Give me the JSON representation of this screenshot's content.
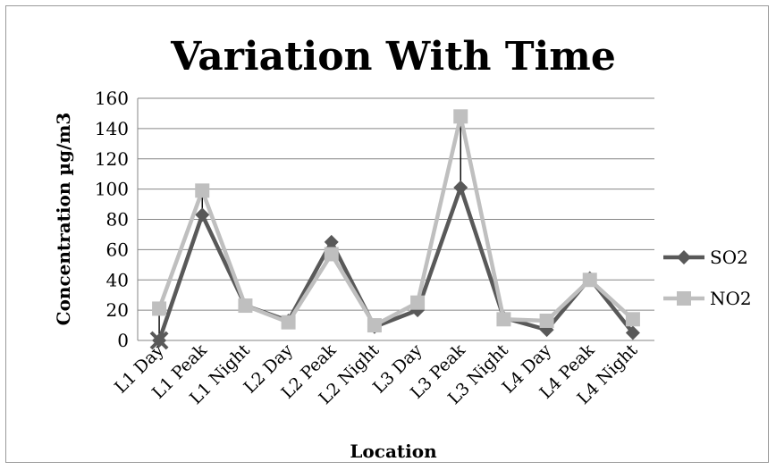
{
  "chart_data": {
    "type": "line",
    "title": "Variation With Time",
    "xlabel": "Location",
    "ylabel": "Concentration µg/m3",
    "categories": [
      "L1 Day",
      "L1 Peak",
      "L1 Night",
      "L2 Day",
      "L2 Peak",
      "L2 Night",
      "L3 Day",
      "L3 Peak",
      "L3 Night",
      "L4 Day",
      "L4 Peak",
      "L4 Night"
    ],
    "series": [
      {
        "name": "SO2",
        "color": "#595959",
        "marker": "diamond",
        "values": [
          0,
          83,
          23,
          13,
          65,
          9,
          20,
          101,
          15,
          7,
          41,
          5
        ]
      },
      {
        "name": "NO2",
        "color": "#bfbfbf",
        "marker": "square",
        "values": [
          21,
          99,
          23,
          12,
          57,
          10,
          25,
          148,
          14,
          13,
          40,
          14
        ]
      }
    ],
    "yticks": [
      "0",
      "20",
      "40",
      "60",
      "80",
      "100",
      "120",
      "140",
      "160"
    ],
    "ylim": [
      0,
      160
    ],
    "grid": "horizontal",
    "legend_position": "right",
    "high_low_lines": true,
    "first_point_marker": "x"
  }
}
